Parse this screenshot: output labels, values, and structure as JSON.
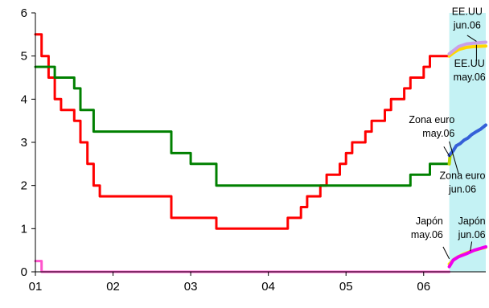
{
  "chart_data": {
    "type": "line",
    "title": "",
    "xlabel": "",
    "ylabel": "",
    "xlim": [
      2001.0,
      2006.8
    ],
    "ylim": [
      0,
      6
    ],
    "yticks": [
      0,
      1,
      2,
      3,
      4,
      5,
      6
    ],
    "xticks": [
      {
        "x": 2001,
        "label": "01"
      },
      {
        "x": 2002,
        "label": "02"
      },
      {
        "x": 2003,
        "label": "03"
      },
      {
        "x": 2004,
        "label": "04"
      },
      {
        "x": 2005,
        "label": "05"
      },
      {
        "x": 2006,
        "label": "06"
      }
    ],
    "grid": false,
    "forecast_region": {
      "x": [
        2006.33,
        2006.8
      ],
      "color": "#c4f2f4"
    },
    "series": [
      {
        "id": "us",
        "color": "#ff0000",
        "step": true,
        "points": [
          [
            2001.0,
            5.5
          ],
          [
            2001.08,
            5.0
          ],
          [
            2001.17,
            4.5
          ],
          [
            2001.25,
            4.0
          ],
          [
            2001.33,
            3.75
          ],
          [
            2001.5,
            3.5
          ],
          [
            2001.58,
            3.0
          ],
          [
            2001.67,
            2.5
          ],
          [
            2001.75,
            2.0
          ],
          [
            2001.83,
            1.75
          ],
          [
            2002.75,
            1.25
          ],
          [
            2003.33,
            1.0
          ],
          [
            2004.25,
            1.25
          ],
          [
            2004.42,
            1.5
          ],
          [
            2004.5,
            1.75
          ],
          [
            2004.67,
            2.0
          ],
          [
            2004.75,
            2.25
          ],
          [
            2004.92,
            2.5
          ],
          [
            2005.0,
            2.75
          ],
          [
            2005.08,
            3.0
          ],
          [
            2005.25,
            3.25
          ],
          [
            2005.33,
            3.5
          ],
          [
            2005.5,
            3.75
          ],
          [
            2005.58,
            4.0
          ],
          [
            2005.75,
            4.25
          ],
          [
            2005.83,
            4.5
          ],
          [
            2006.0,
            4.75
          ],
          [
            2006.08,
            5.0
          ],
          [
            2006.33,
            5.0
          ]
        ]
      },
      {
        "id": "euro",
        "color": "#008000",
        "step": true,
        "points": [
          [
            2001.0,
            4.75
          ],
          [
            2001.25,
            4.5
          ],
          [
            2001.5,
            4.25
          ],
          [
            2001.58,
            3.75
          ],
          [
            2001.75,
            3.25
          ],
          [
            2002.75,
            2.75
          ],
          [
            2003.0,
            2.5
          ],
          [
            2003.33,
            2.0
          ],
          [
            2005.83,
            2.25
          ],
          [
            2006.08,
            2.5
          ],
          [
            2006.33,
            2.5
          ]
        ]
      },
      {
        "id": "japan",
        "color": "#ff55cc",
        "step": true,
        "points": [
          [
            2001.0,
            0.25
          ],
          [
            2001.08,
            0.0
          ],
          [
            2006.33,
            0.0
          ]
        ]
      },
      {
        "id": "us-fwd-may06",
        "color": "#ffd700",
        "step": false,
        "points": [
          [
            2006.33,
            5.0
          ],
          [
            2006.38,
            5.07
          ],
          [
            2006.45,
            5.15
          ],
          [
            2006.55,
            5.2
          ],
          [
            2006.65,
            5.22
          ],
          [
            2006.8,
            5.23
          ]
        ]
      },
      {
        "id": "us-fwd-jun06",
        "color": "#c9a0e8",
        "step": false,
        "points": [
          [
            2006.33,
            5.05
          ],
          [
            2006.38,
            5.12
          ],
          [
            2006.45,
            5.22
          ],
          [
            2006.55,
            5.28
          ],
          [
            2006.65,
            5.3
          ],
          [
            2006.8,
            5.32
          ]
        ]
      },
      {
        "id": "euro-fwd-may06",
        "color": "#b8d800",
        "step": false,
        "points": [
          [
            2006.33,
            2.5
          ],
          [
            2006.34,
            2.7
          ],
          [
            2006.36,
            2.73
          ]
        ]
      },
      {
        "id": "euro-fwd-jun06",
        "color": "#3560d8",
        "step": false,
        "points": [
          [
            2006.33,
            2.7
          ],
          [
            2006.38,
            2.8
          ],
          [
            2006.42,
            2.92
          ],
          [
            2006.47,
            2.97
          ],
          [
            2006.52,
            3.05
          ],
          [
            2006.57,
            3.1
          ],
          [
            2006.62,
            3.18
          ],
          [
            2006.68,
            3.25
          ],
          [
            2006.73,
            3.3
          ],
          [
            2006.8,
            3.4
          ]
        ]
      },
      {
        "id": "japan-fwd-may06",
        "color": "#ffee00",
        "step": false,
        "points": [
          [
            2006.33,
            0.18
          ],
          [
            2006.4,
            0.3
          ],
          [
            2006.5,
            0.4
          ],
          [
            2006.6,
            0.47
          ],
          [
            2006.7,
            0.52
          ],
          [
            2006.8,
            0.57
          ]
        ]
      },
      {
        "id": "japan-fwd-jun06",
        "color": "#ee00ee",
        "step": false,
        "points": [
          [
            2006.33,
            0.12
          ],
          [
            2006.38,
            0.27
          ],
          [
            2006.45,
            0.35
          ],
          [
            2006.55,
            0.42
          ],
          [
            2006.65,
            0.5
          ],
          [
            2006.8,
            0.58
          ]
        ]
      }
    ],
    "annotations": [
      {
        "id": "ee-uu-jun06",
        "lines": [
          "EE.UU",
          "jun.06"
        ],
        "anchor": "middle",
        "tx": 2006.56,
        "ty": 5.95,
        "leader": [
          [
            2006.56,
            5.48
          ],
          [
            2006.68,
            5.34
          ]
        ]
      },
      {
        "id": "ee-uu-may06",
        "lines": [
          "EE.UU",
          "may.06"
        ],
        "anchor": "middle",
        "tx": 2006.59,
        "ty": 4.75,
        "leader": [
          [
            2006.68,
            5.26
          ],
          [
            2006.68,
            4.88
          ]
        ]
      },
      {
        "id": "zona-euro-may06",
        "lines": [
          "Zona euro",
          "may.06"
        ],
        "anchor": "end",
        "tx": 2006.4,
        "ty": 3.45,
        "leader": [
          [
            2006.26,
            2.9
          ],
          [
            2006.34,
            2.66
          ]
        ]
      },
      {
        "id": "zona-euro-jun06",
        "lines": [
          "Zona euro",
          "jun.06"
        ],
        "anchor": "middle",
        "tx": 2006.5,
        "ty": 2.15,
        "leader": [
          [
            2006.45,
            2.27
          ],
          [
            2006.33,
            3.02
          ]
        ]
      },
      {
        "id": "japon-may06",
        "lines": [
          "Japón",
          "may.06"
        ],
        "anchor": "end",
        "tx": 2006.25,
        "ty": 1.1,
        "leader": [
          [
            2006.25,
            0.58
          ],
          [
            2006.33,
            0.3
          ]
        ]
      },
      {
        "id": "japon-jun06",
        "lines": [
          "Japón",
          "jun.06"
        ],
        "anchor": "middle",
        "tx": 2006.62,
        "ty": 1.1,
        "leader": [
          [
            2006.62,
            0.7
          ],
          [
            2006.6,
            0.48
          ]
        ]
      }
    ]
  }
}
